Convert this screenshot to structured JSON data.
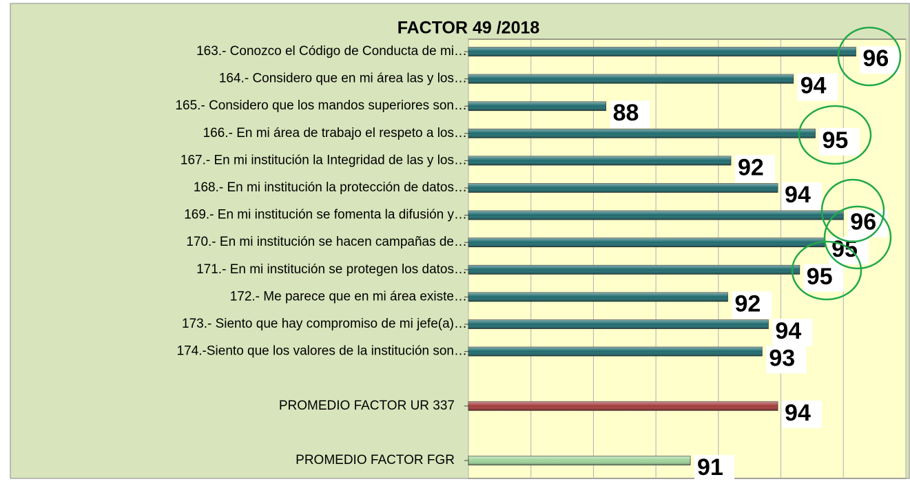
{
  "chart_data": {
    "type": "barh",
    "title": "FACTOR 49 /2018",
    "categories": [
      "163.- Conozco el Código de Conducta de mi…",
      "164.- Considero que en mi área las y los…",
      "165.- Considero que los mandos superiores son…",
      "166.- En mi área de trabajo el respeto a los…",
      "167.- En mi institución la Integridad de las y los…",
      "168.- En mi institución la protección de datos…",
      "169.- En mi institución se fomenta la difusión y…",
      "170.- En mi institución se hacen campañas de…",
      "171.- En mi institución se protegen los datos…",
      "172.- Me parece que en mi área existe…",
      "173.- Siento que hay compromiso de mi jefe(a)…",
      "174.-Siento que los valores de la institución son…",
      null,
      "PROMEDIO FACTOR UR 337",
      null,
      "PROMEDIO FACTOR FGR"
    ],
    "values": [
      96.4,
      94.4,
      88.4,
      95.1,
      92.4,
      93.9,
      96.0,
      95.4,
      94.6,
      92.3,
      93.6,
      93.4,
      null,
      93.9,
      null,
      91.1
    ],
    "value_labels": [
      "96",
      "94",
      "88",
      "95",
      "92",
      "94",
      "96",
      "95",
      "95",
      "92",
      "94",
      "93",
      null,
      "94",
      null,
      "91"
    ],
    "colors": [
      "#1e6b6e",
      "#1e6b6e",
      "#1e6b6e",
      "#1e6b6e",
      "#1e6b6e",
      "#1e6b6e",
      "#1e6b6e",
      "#1e6b6e",
      "#1e6b6e",
      "#1e6b6e",
      "#1e6b6e",
      "#1e6b6e",
      null,
      "#a33a3a",
      null,
      "#9fd49a"
    ],
    "xlim": [
      84,
      98
    ],
    "xticks": [
      84,
      86,
      88,
      90,
      92,
      94,
      96,
      98
    ],
    "grid": true
  }
}
